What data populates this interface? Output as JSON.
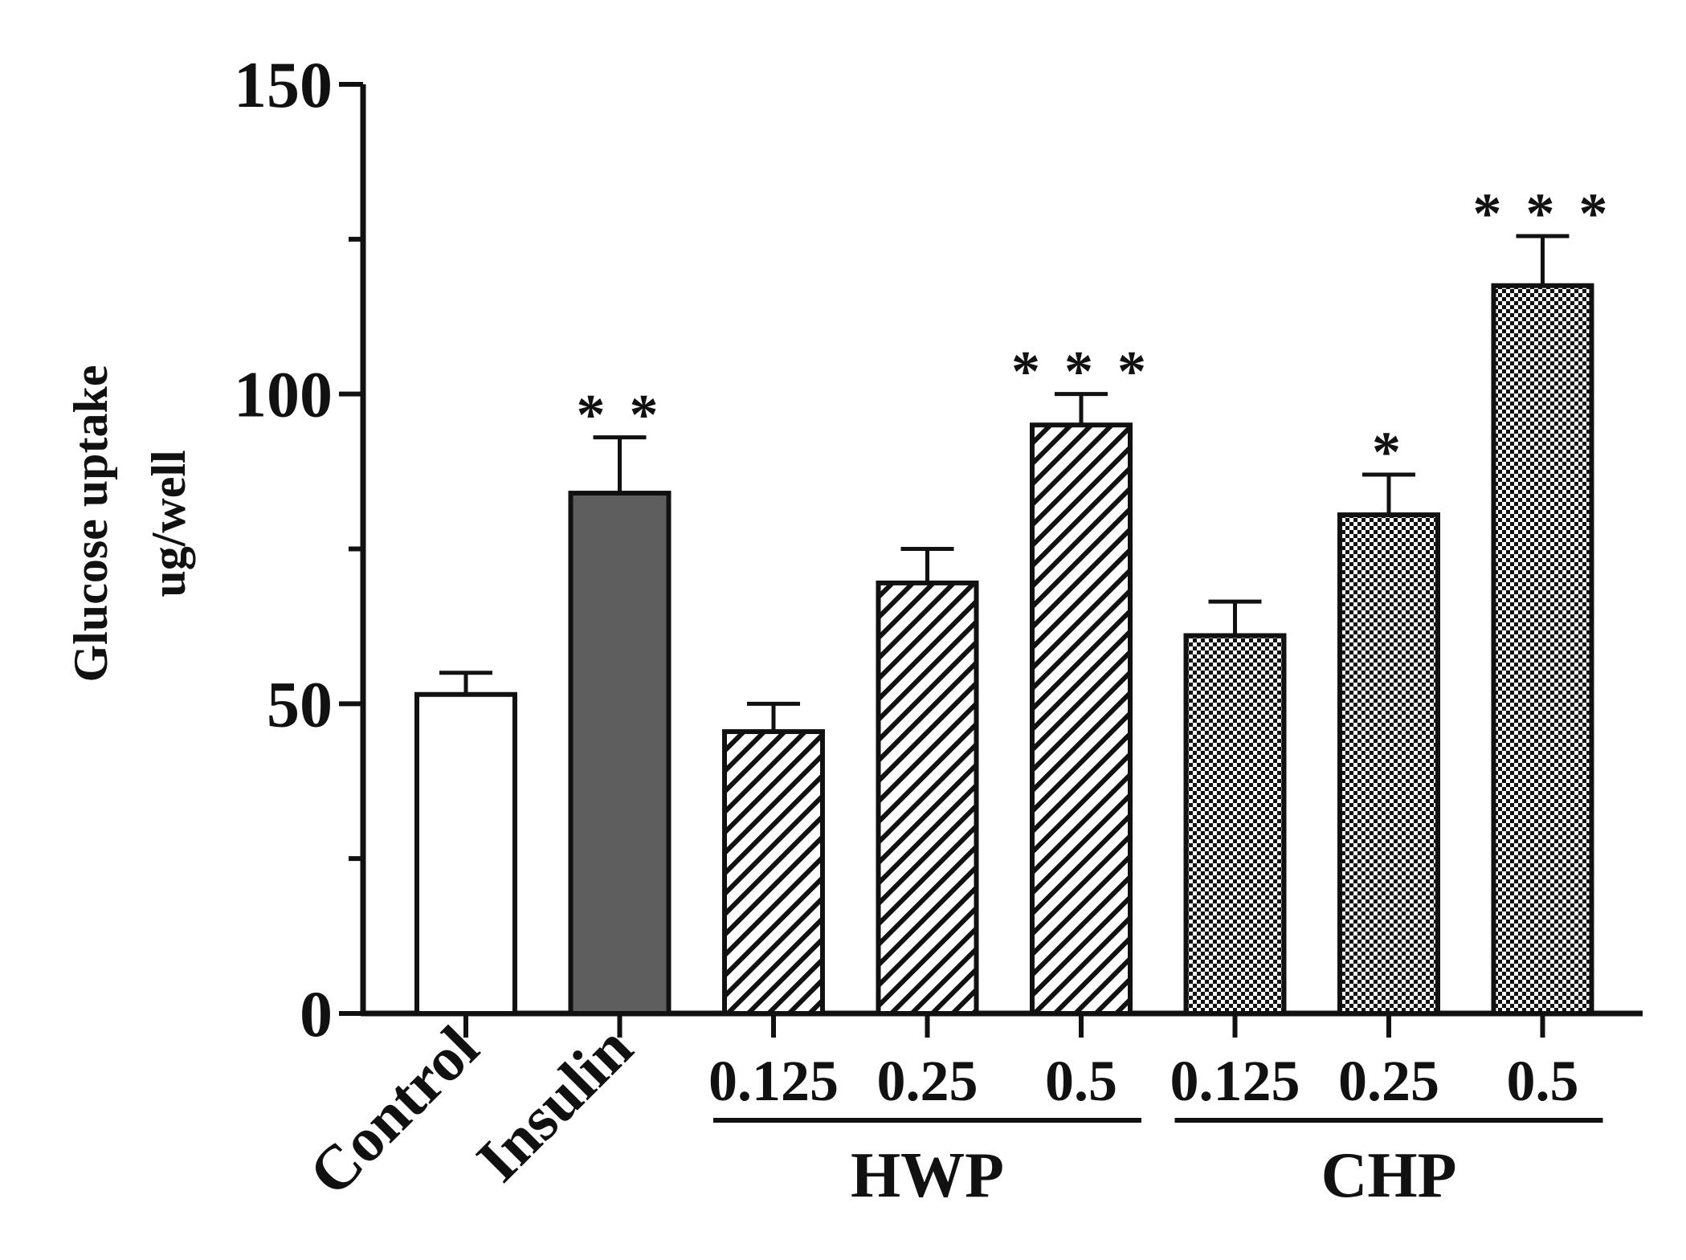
{
  "chart_data": {
    "type": "bar",
    "title": "",
    "xlabel": "",
    "ylabel": "Glucose uptake",
    "ylabel_unit": "ug/well",
    "ylim": [
      0,
      150
    ],
    "ytick_labels": [
      "0",
      "50",
      "100",
      "150"
    ],
    "minor_ticks": [
      25,
      75,
      125
    ],
    "grid": false,
    "categories": [
      "Control",
      "Insulin",
      "0.125",
      "0.25",
      "0.5",
      "0.125",
      "0.25",
      "0.5"
    ],
    "values": [
      51.5,
      84,
      45.5,
      69.5,
      95,
      61,
      80.5,
      117.5
    ],
    "errors": [
      3.5,
      9,
      4.5,
      5.5,
      5,
      5.5,
      6.5,
      8
    ],
    "significance": [
      "",
      "**",
      "",
      "",
      "***",
      "",
      "*",
      "***"
    ],
    "fills": [
      "white",
      "solid",
      "hatch",
      "hatch",
      "hatch",
      "checker",
      "checker",
      "checker"
    ],
    "groups": [
      {
        "label": "HWP",
        "members": [
          2,
          3,
          4
        ]
      },
      {
        "label": "CHP",
        "members": [
          5,
          6,
          7
        ]
      }
    ]
  },
  "colors": {
    "axis": "#111111",
    "solid_bar": "#5e5e5e",
    "open_bar": "#ffffff"
  }
}
